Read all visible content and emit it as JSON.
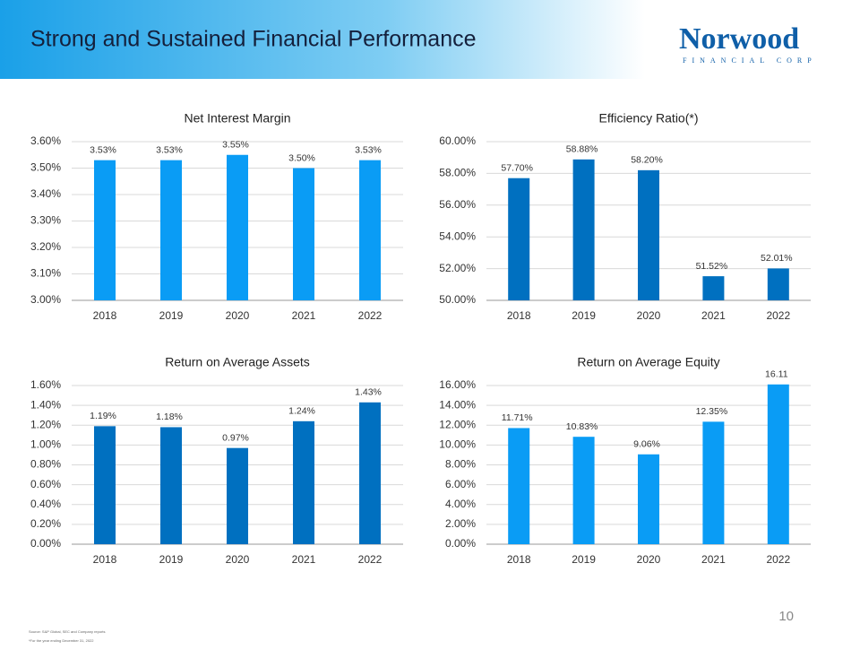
{
  "header": {
    "title": "Strong and Sustained Financial Performance",
    "logo": {
      "name": "Norwood",
      "subtitle": "FINANCIAL CORP"
    }
  },
  "chart_data": [
    {
      "type": "bar",
      "title": "Net Interest Margin",
      "categories": [
        "2018",
        "2019",
        "2020",
        "2021",
        "2022"
      ],
      "values": [
        3.53,
        3.53,
        3.55,
        3.5,
        3.53
      ],
      "value_labels": [
        "3.53%",
        "3.53%",
        "3.55%",
        "3.50%",
        "3.53%"
      ],
      "color": "#0a9cf5",
      "ylim": [
        3.0,
        3.6
      ],
      "yticks": [
        {
          "value": 3.0,
          "label": "3.00%"
        },
        {
          "value": 3.1,
          "label": "3.10%"
        },
        {
          "value": 3.2,
          "label": "3.20%"
        },
        {
          "value": 3.3,
          "label": "3.30%"
        },
        {
          "value": 3.4,
          "label": "3.40%"
        },
        {
          "value": 3.5,
          "label": "3.50%"
        },
        {
          "value": 3.6,
          "label": "3.60%"
        }
      ],
      "grid": true
    },
    {
      "type": "bar",
      "title": "Efficiency Ratio(*)",
      "categories": [
        "2018",
        "2019",
        "2020",
        "2021",
        "2022"
      ],
      "values": [
        57.7,
        58.88,
        58.2,
        51.52,
        52.01
      ],
      "value_labels": [
        "57.70%",
        "58.88%",
        "58.20%",
        "51.52%",
        "52.01%"
      ],
      "color": "#0070c0",
      "ylim": [
        50,
        60
      ],
      "yticks": [
        {
          "value": 50,
          "label": "50.00%"
        },
        {
          "value": 52,
          "label": "52.00%"
        },
        {
          "value": 54,
          "label": "54.00%"
        },
        {
          "value": 56,
          "label": "56.00%"
        },
        {
          "value": 58,
          "label": "58.00%"
        },
        {
          "value": 60,
          "label": "60.00%"
        }
      ],
      "grid": true
    },
    {
      "type": "bar",
      "title": "Return on Average Assets",
      "categories": [
        "2018",
        "2019",
        "2020",
        "2021",
        "2022"
      ],
      "values": [
        1.19,
        1.18,
        0.97,
        1.24,
        1.43
      ],
      "value_labels": [
        "1.19%",
        "1.18%",
        "0.97%",
        "1.24%",
        "1.43%"
      ],
      "color": "#0070c0",
      "ylim": [
        0,
        1.6
      ],
      "yticks": [
        {
          "value": 0,
          "label": "0.00%"
        },
        {
          "value": 0.2,
          "label": "0.20%"
        },
        {
          "value": 0.4,
          "label": "0.40%"
        },
        {
          "value": 0.6,
          "label": "0.60%"
        },
        {
          "value": 0.8,
          "label": "0.80%"
        },
        {
          "value": 1.0,
          "label": "1.00%"
        },
        {
          "value": 1.2,
          "label": "1.20%"
        },
        {
          "value": 1.4,
          "label": "1.40%"
        },
        {
          "value": 1.6,
          "label": "1.60%"
        }
      ],
      "grid": true
    },
    {
      "type": "bar",
      "title": "Return on Average Equity",
      "categories": [
        "2018",
        "2019",
        "2020",
        "2021",
        "2022"
      ],
      "values": [
        11.71,
        10.83,
        9.06,
        12.35,
        16.11
      ],
      "value_labels": [
        "11.71%",
        "10.83%",
        "9.06%",
        "12.35%",
        "16.11"
      ],
      "color": "#0a9cf5",
      "ylim": [
        0,
        16
      ],
      "yticks": [
        {
          "value": 0,
          "label": "0.00%"
        },
        {
          "value": 2,
          "label": "2.00%"
        },
        {
          "value": 4,
          "label": "4.00%"
        },
        {
          "value": 6,
          "label": "6.00%"
        },
        {
          "value": 8,
          "label": "8.00%"
        },
        {
          "value": 10,
          "label": "10.00%"
        },
        {
          "value": 12,
          "label": "12.00%"
        },
        {
          "value": 14,
          "label": "14.00%"
        },
        {
          "value": 16,
          "label": "16.00%"
        }
      ],
      "grid": true
    }
  ],
  "page_number": "10",
  "footnotes": [
    "Source: S&P Global, SEC and Company reports",
    "*For the year ending December 31, 2022"
  ]
}
